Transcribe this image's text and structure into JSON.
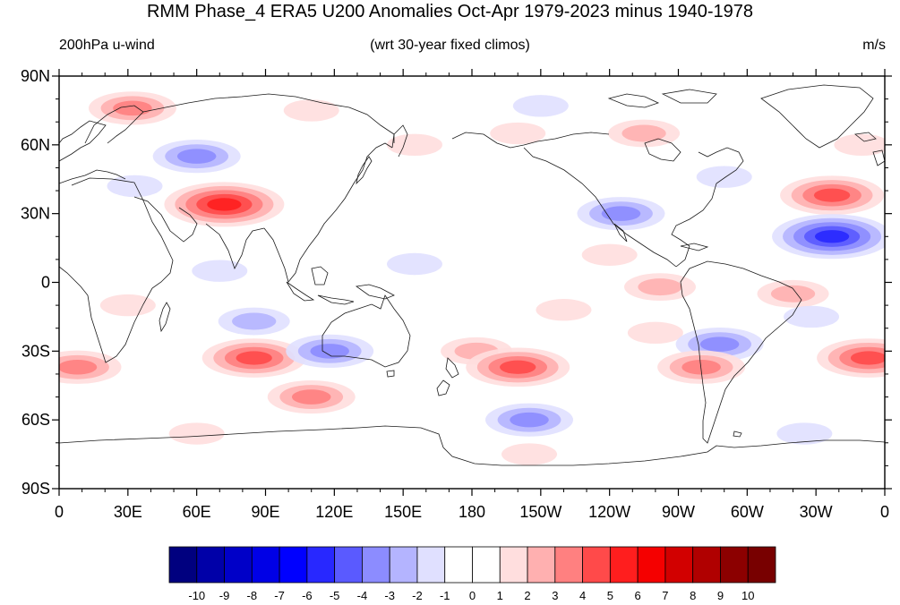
{
  "title": "RMM Phase_4 ERA5 U200 Anomalies Oct-Apr 1979-2023 minus 1940-1978",
  "left_label": "200hPa u-wind",
  "center_label": "(wrt 30-year fixed climos)",
  "right_label": "m/s",
  "chart_data": {
    "type": "heatmap",
    "x_tick_labels": [
      "0",
      "30E",
      "60E",
      "90E",
      "120E",
      "150E",
      "180",
      "150W",
      "120W",
      "90W",
      "60W",
      "30W",
      "0"
    ],
    "y_tick_labels": [
      "90N",
      "60N",
      "30N",
      "0",
      "30S",
      "60S",
      "90S"
    ],
    "x_ticks_deg": [
      0,
      30,
      60,
      90,
      120,
      150,
      180,
      210,
      240,
      270,
      300,
      330,
      360
    ],
    "y_ticks_deg": [
      90,
      60,
      30,
      0,
      -30,
      -60,
      -90
    ],
    "xlim": [
      0,
      360
    ],
    "ylim": [
      -90,
      90
    ],
    "colorbar_labels": [
      "-10",
      "-9",
      "-8",
      "-7",
      "-6",
      "-5",
      "-4",
      "-3",
      "-2",
      "-1",
      "0",
      "1",
      "2",
      "3",
      "4",
      "5",
      "6",
      "7",
      "8",
      "9",
      "10"
    ],
    "colorbar_colors": [
      "#00007f",
      "#0000a8",
      "#0000c8",
      "#0000e6",
      "#0000ff",
      "#2828ff",
      "#5a5aff",
      "#8c8cff",
      "#b4b4ff",
      "#e0e0ff",
      "#ffffff",
      "#ffffff",
      "#ffdede",
      "#ffb0b0",
      "#ff8080",
      "#ff4a4a",
      "#ff1e1e",
      "#f50000",
      "#d20000",
      "#b00000",
      "#8c0000",
      "#780000"
    ],
    "anomaly_features": [
      {
        "lon": 32,
        "lat": 76,
        "value": 3
      },
      {
        "lon": 72,
        "lat": 34,
        "value": 5
      },
      {
        "lon": 60,
        "lat": 55,
        "value": -3
      },
      {
        "lon": 33,
        "lat": 42,
        "value": -1
      },
      {
        "lon": 155,
        "lat": 60,
        "value": 1
      },
      {
        "lon": 200,
        "lat": 65,
        "value": 1
      },
      {
        "lon": 255,
        "lat": 65,
        "value": 2
      },
      {
        "lon": 210,
        "lat": 77,
        "value": -1
      },
      {
        "lon": 245,
        "lat": 30,
        "value": -3
      },
      {
        "lon": 337,
        "lat": 38,
        "value": 4
      },
      {
        "lon": 337,
        "lat": 20,
        "value": -5
      },
      {
        "lon": 290,
        "lat": 46,
        "value": -1
      },
      {
        "lon": 240,
        "lat": 12,
        "value": 1
      },
      {
        "lon": 262,
        "lat": -2,
        "value": 2
      },
      {
        "lon": 320,
        "lat": -5,
        "value": 2
      },
      {
        "lon": 155,
        "lat": 8,
        "value": -1
      },
      {
        "lon": 70,
        "lat": 5,
        "value": -1
      },
      {
        "lon": 30,
        "lat": -10,
        "value": 1
      },
      {
        "lon": 220,
        "lat": -12,
        "value": 1
      },
      {
        "lon": 260,
        "lat": -22,
        "value": 1
      },
      {
        "lon": 288,
        "lat": -27,
        "value": -3
      },
      {
        "lon": 8,
        "lat": -37,
        "value": 3
      },
      {
        "lon": 85,
        "lat": -33,
        "value": 4
      },
      {
        "lon": 110,
        "lat": -50,
        "value": 3
      },
      {
        "lon": 118,
        "lat": -30,
        "value": -3
      },
      {
        "lon": 85,
        "lat": -17,
        "value": -2
      },
      {
        "lon": 182,
        "lat": -30,
        "value": 2
      },
      {
        "lon": 200,
        "lat": -37,
        "value": 4
      },
      {
        "lon": 280,
        "lat": -37,
        "value": 3
      },
      {
        "lon": 353,
        "lat": -33,
        "value": 4
      },
      {
        "lon": 328,
        "lat": -15,
        "value": -1
      },
      {
        "lon": 205,
        "lat": -60,
        "value": -3
      },
      {
        "lon": 205,
        "lat": -75,
        "value": 1
      },
      {
        "lon": 60,
        "lat": -66,
        "value": 1
      },
      {
        "lon": 325,
        "lat": -66,
        "value": -1
      },
      {
        "lon": 350,
        "lat": 60,
        "value": 1
      },
      {
        "lon": 110,
        "lat": 75,
        "value": 1
      }
    ]
  },
  "colors": {
    "coast": "#1a1a1a",
    "frame": "#000000"
  }
}
